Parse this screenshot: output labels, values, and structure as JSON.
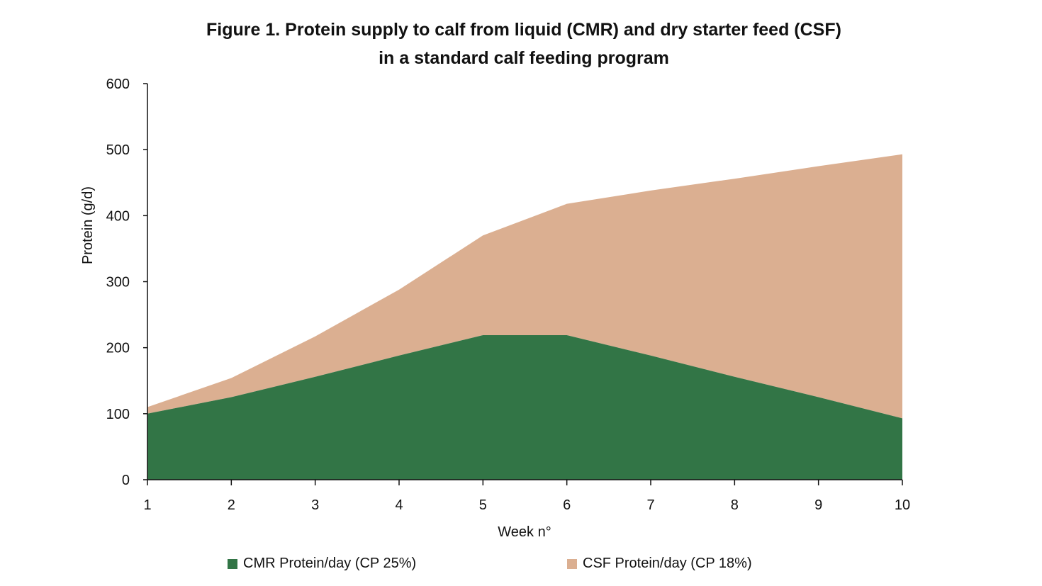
{
  "chart_data": {
    "type": "area",
    "stacked": true,
    "title": [
      "Figure 1. Protein supply to calf from liquid (CMR) and dry starter feed (CSF)",
      "in a standard calf feeding program"
    ],
    "xlabel": "Week n°",
    "ylabel": "Protein (g/d)",
    "categories": [
      "1",
      "2",
      "3",
      "4",
      "5",
      "6",
      "7",
      "8",
      "9",
      "10"
    ],
    "ylim": [
      0,
      600
    ],
    "yticks": [
      "0",
      "100",
      "200",
      "300",
      "400",
      "500",
      "600"
    ],
    "grid": false,
    "legend_position": "bottom",
    "series": [
      {
        "name": "CMR Protein/day (CP 25%)",
        "color": "#327546",
        "values": [
          100,
          125,
          156,
          188,
          219,
          219,
          188,
          156,
          125,
          93
        ]
      },
      {
        "name": "CSF Protein/day (CP 18%)",
        "color": "#dbaf91",
        "values": [
          10,
          29,
          61,
          100,
          151,
          199,
          250,
          300,
          350,
          400
        ]
      }
    ]
  }
}
